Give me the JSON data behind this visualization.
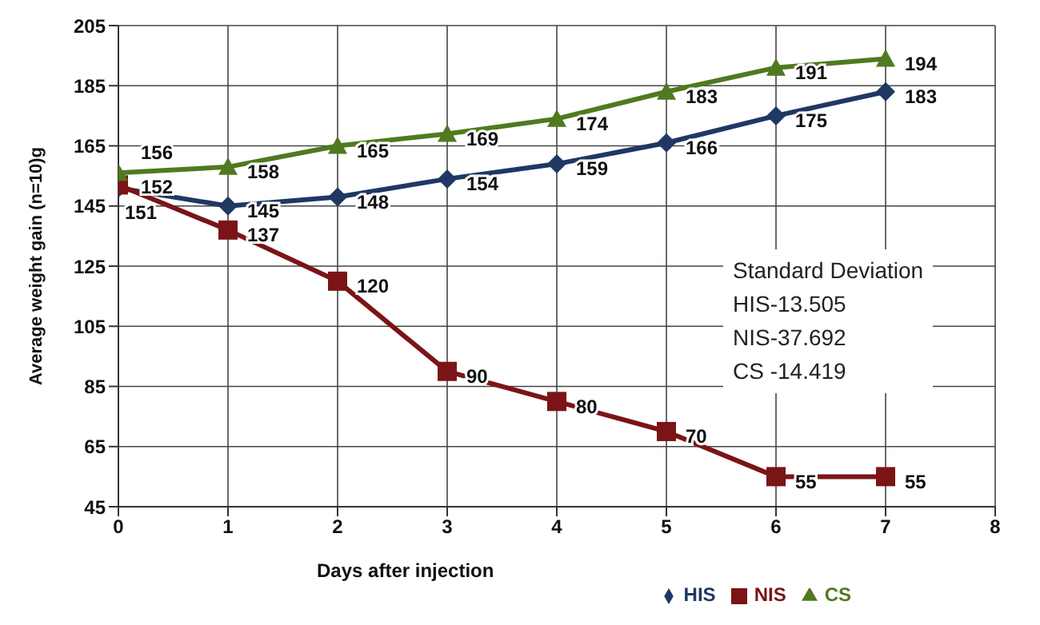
{
  "chart_data": {
    "type": "line",
    "xlabel": "Days after injection",
    "ylabel": "Average weight gain  (n=10)g",
    "x": [
      0,
      1,
      2,
      3,
      4,
      5,
      6,
      7
    ],
    "series": [
      {
        "name": "HIS",
        "color": "#1f3864",
        "marker": "diamond",
        "values": [
          151,
          145,
          148,
          154,
          159,
          166,
          175,
          183
        ]
      },
      {
        "name": "NIS",
        "color": "#7b1416",
        "marker": "square",
        "values": [
          152,
          137,
          120,
          90,
          80,
          70,
          55,
          55
        ]
      },
      {
        "name": "CS",
        "color": "#4f7a1f",
        "marker": "triangle",
        "values": [
          156,
          158,
          165,
          169,
          174,
          183,
          191,
          194
        ]
      }
    ],
    "xlim": [
      0,
      8
    ],
    "xticks": [
      0,
      1,
      2,
      3,
      4,
      5,
      6,
      7,
      8
    ],
    "ylim": [
      45,
      205
    ],
    "yticks": [
      45,
      65,
      85,
      105,
      125,
      145,
      165,
      185,
      205
    ],
    "grid": true,
    "legend": "bottom right",
    "data_labels": true,
    "annotations": [
      "Standard Deviation",
      "HIS-13.505",
      "NIS-37.692",
      "CS -14.419"
    ]
  }
}
